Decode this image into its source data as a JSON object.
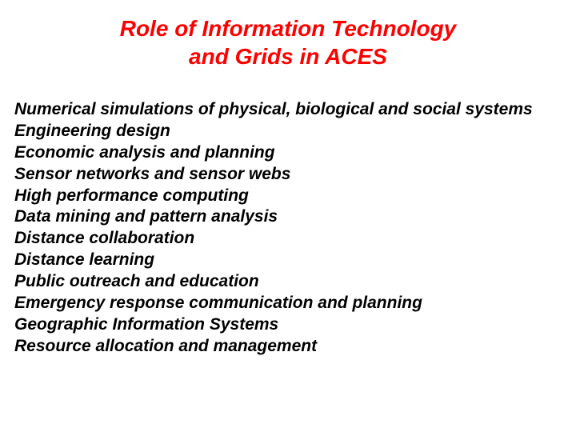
{
  "title": {
    "line1": "Role of Information Technology",
    "line2": "and Grids in ACES",
    "color": "#ff0000",
    "fontsize": 28
  },
  "list": {
    "color": "#000000",
    "fontsize": 21,
    "items": [
      "Numerical simulations of physical, biological and social systems",
      "Engineering design",
      "Economic analysis and planning",
      "Sensor networks and sensor webs",
      "High performance computing",
      "Data mining and pattern analysis",
      "Distance collaboration",
      "Distance learning",
      "Public outreach and education",
      "Emergency response communication and planning",
      "Geographic Information Systems",
      "Resource allocation and management"
    ]
  }
}
